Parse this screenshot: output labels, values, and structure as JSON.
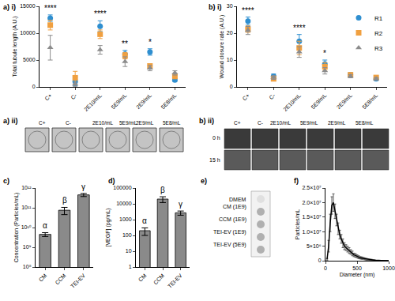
{
  "chart_data": [
    {
      "title": "a) i)",
      "type": "scatter",
      "y_label": "Total tubule length (A.U.)",
      "categories": [
        "C+",
        "C-",
        "2E10/mL",
        "5E9/mL",
        "2E9/mL",
        "5E8/mL"
      ],
      "series": [
        {
          "name": "R1",
          "color": "#2f8fd0",
          "marker": "circle",
          "values": [
            12800,
            1000,
            11300,
            6100,
            6500,
            1300
          ],
          "errors": [
            600,
            800,
            1000,
            700,
            600,
            300
          ]
        },
        {
          "name": "R2",
          "color": "#f0a040",
          "marker": "square",
          "values": [
            11500,
            1700,
            9800,
            5800,
            3900,
            2000
          ],
          "errors": [
            900,
            1200,
            800,
            600,
            400,
            500
          ]
        },
        {
          "name": "R3",
          "color": "#8c8c8c",
          "marker": "triangle",
          "values": [
            7300,
            500,
            6900,
            4700,
            3500,
            2600
          ],
          "errors": [
            2300,
            400,
            800,
            900,
            500,
            400
          ]
        }
      ],
      "annotations": [
        {
          "category": "C+",
          "text": "****"
        },
        {
          "category": "2E10/mL",
          "text": "****"
        },
        {
          "category": "5E9/mL",
          "text": "**"
        },
        {
          "category": "2E9/mL",
          "text": "*"
        }
      ],
      "ylim": [
        0,
        15000
      ],
      "yticks": [
        0,
        5000,
        10000,
        15000
      ],
      "grid": false
    },
    {
      "title": "b) i)",
      "type": "scatter",
      "y_label": "Wound closure rate (A.U.)",
      "categories": [
        "C+",
        "C-",
        "2E10/mL",
        "5E9/mL",
        "2E9/mL",
        "5E8/mL"
      ],
      "series": [
        {
          "name": "R1",
          "color": "#2f8fd0",
          "marker": "circle",
          "values": [
            24.5,
            4,
            17,
            8.5,
            4.5,
            3
          ],
          "errors": [
            1.5,
            0.8,
            2.5,
            1.5,
            0.8,
            0.6
          ]
        },
        {
          "name": "R2",
          "color": "#f0a040",
          "marker": "square",
          "values": [
            21.5,
            3,
            14.5,
            7.5,
            4.5,
            3.5
          ],
          "errors": [
            1.2,
            0.6,
            2.5,
            1.5,
            0.7,
            0.6
          ]
        },
        {
          "name": "R3",
          "color": "#8c8c8c",
          "marker": "triangle",
          "values": [
            21,
            3.5,
            13,
            6,
            4,
            3
          ],
          "errors": [
            1.5,
            0.7,
            2,
            1.2,
            0.6,
            0.5
          ]
        }
      ],
      "annotations": [
        {
          "category": "C+",
          "text": "****"
        },
        {
          "category": "2E10/mL",
          "text": "****"
        },
        {
          "category": "5E9/mL",
          "text": "*"
        }
      ],
      "ylim": [
        0,
        30
      ],
      "yticks": [
        0,
        10,
        20,
        30
      ],
      "grid": false,
      "legend": "top right"
    },
    {
      "title": "c)",
      "type": "bar",
      "y_label": "Concentration (Particles/mL)",
      "log": "y",
      "categories": [
        "CM",
        "CCM",
        "TEI-EV"
      ],
      "values": [
        4500000000,
        75000000000,
        450000000000
      ],
      "errors": [
        1000000000,
        30000000000,
        80000000000
      ],
      "color": "#8a8a8a",
      "annotations": [
        {
          "category": "CM",
          "text": "α"
        },
        {
          "category": "CCM",
          "text": "β"
        },
        {
          "category": "TEI-EV",
          "text": "γ"
        }
      ],
      "ylim": [
        100000000,
        1000000000000
      ],
      "yticks": [
        {
          "value": 100000000,
          "label": "10⁸"
        },
        {
          "value": 1000000000,
          "label": "10⁹"
        },
        {
          "value": 10000000000,
          "label": "10¹⁰"
        },
        {
          "value": 100000000000,
          "label": "10¹¹"
        },
        {
          "value": 1000000000000,
          "label": "10¹²"
        }
      ],
      "grid": false
    },
    {
      "title": "d)",
      "type": "bar",
      "y_label": "[VEGF] (pg/mL)",
      "log": "y",
      "categories": [
        "CM",
        "CCM",
        "TEI-EV"
      ],
      "values": [
        200,
        20000,
        2700
      ],
      "errors": [
        100,
        8000,
        800
      ],
      "color": "#8a8a8a",
      "annotations": [
        {
          "category": "CM",
          "text": "α"
        },
        {
          "category": "CCM",
          "text": "β"
        },
        {
          "category": "TEI-EV",
          "text": "γ"
        }
      ],
      "ylim": [
        1,
        100000
      ],
      "yticks": [
        1,
        10,
        100,
        1000,
        10000,
        100000
      ],
      "grid": false
    },
    {
      "title": "f)",
      "type": "line",
      "x_label": "Diameter (nm)",
      "y_label": "Particles/mL",
      "color": "#000000",
      "x": [
        25,
        50,
        75,
        100,
        125,
        150,
        175,
        200,
        225,
        250,
        275,
        300,
        325,
        350,
        375,
        400,
        425,
        450,
        475,
        500,
        525,
        550,
        575,
        600,
        625,
        650,
        675,
        700,
        725,
        750,
        775,
        800,
        825,
        850,
        875,
        900,
        925,
        950,
        975,
        1000
      ],
      "values": [
        500000,
        5000000,
        13000000,
        19000000,
        20000000,
        17000000,
        14000000,
        11000000,
        9000000,
        7500000,
        6000000,
        5000000,
        4500000,
        4000000,
        3500000,
        3000000,
        2500000,
        2000000,
        1800000,
        1500000,
        1200000,
        1000000,
        900000,
        800000,
        600000,
        500000,
        400000,
        300000,
        300000,
        200000,
        200000,
        100000,
        100000,
        100000,
        50000,
        50000,
        0,
        0,
        0,
        0
      ],
      "errors": [
        300000,
        2000000,
        3000000,
        3000000,
        3000000,
        2500000,
        2000000,
        2000000,
        1500000,
        1500000,
        1500000,
        1200000,
        1000000,
        1000000,
        1000000,
        800000,
        800000,
        600000,
        600000,
        500000,
        500000,
        400000,
        400000,
        300000,
        300000,
        300000,
        200000,
        200000,
        200000,
        100000,
        100000,
        100000,
        100000,
        100000,
        50000,
        50000,
        0,
        0,
        0,
        0
      ],
      "xlim": [
        0,
        1000
      ],
      "xticks": [
        0,
        500,
        1000
      ],
      "ylim": [
        0,
        25000000
      ],
      "yticks": [
        0,
        {
          "value": 5000000,
          "label": "5×10⁶"
        },
        {
          "value": 10000000,
          "label": "1.0×10⁷"
        },
        {
          "value": 15000000,
          "label": "1.5×10⁷"
        },
        {
          "value": 20000000,
          "label": "2.0×10⁷"
        },
        {
          "value": 25000000,
          "label": "2.5×10⁷"
        }
      ],
      "grid": false
    }
  ],
  "panels": [
    {
      "title": "a) ii)",
      "type": "image_row",
      "labels": [
        "C+",
        "C-",
        "2E10/mL",
        "5E9/mL",
        "2E9/mL",
        "5E8/mL"
      ]
    },
    {
      "title": "b) ii)",
      "type": "image_grid",
      "labels": [
        "C+",
        "C-",
        "2E10/mL",
        "5E9/mL",
        "2E9/mL",
        "5E8/mL"
      ],
      "rows": [
        "0 h",
        "15 h"
      ]
    },
    {
      "title": "e)",
      "type": "dot_blot",
      "labels": [
        "DMEM",
        "CM (1E9)",
        "CCM (1E9)",
        "TEI-EV (1E9)",
        "TEI-EV (5E9)"
      ]
    }
  ]
}
